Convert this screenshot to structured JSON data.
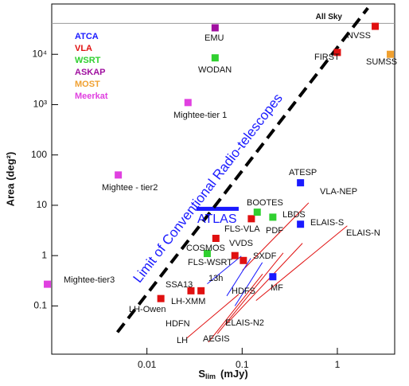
{
  "chart_data": {
    "type": "scatter",
    "xlabel": {
      "symbol": "S",
      "subscript": "lim",
      "unit": "(mJy)"
    },
    "ylabel": "Area (deg²)",
    "log_x": true,
    "log_y": true,
    "xlim": [
      0.001,
      4
    ],
    "ylim": [
      0.011,
      100000
    ],
    "xticks": [
      0.01,
      0.1,
      1
    ],
    "yticks": [
      0.1,
      1,
      10,
      100,
      {
        "value": 1000,
        "label": "10³"
      },
      {
        "value": 10000,
        "label": "10⁴"
      }
    ],
    "legend": "top-left",
    "series": [
      {
        "name": "ATCA",
        "color": "#1a1aff",
        "x": [
          0.41,
          0.41,
          0.21
        ],
        "y": [
          28,
          4.2,
          0.38
        ]
      },
      {
        "name": "VLA",
        "color": "#e01010",
        "x": [
          2.5,
          1.0,
          0.125,
          0.053,
          0.084,
          0.103,
          0.029,
          0.037,
          0.014
        ],
        "y": [
          36000,
          10900,
          5.4,
          2.2,
          1.0,
          0.8,
          0.2,
          0.2,
          0.14
        ]
      },
      {
        "name": "WSRT",
        "color": "#30d030",
        "x": [
          0.052,
          0.144,
          0.21,
          0.043
        ],
        "y": [
          8500,
          7.3,
          5.8,
          1.1
        ]
      },
      {
        "name": "ASKAP",
        "color": "#a010a0",
        "x": [
          0.052
        ],
        "y": [
          33600
        ]
      },
      {
        "name": "MOST",
        "color": "#f0a030",
        "x": [
          3.6
        ],
        "y": [
          10000
        ]
      },
      {
        "name": "Meerkat",
        "color": "#e040e0",
        "x": [
          0.027,
          0.005,
          0.0009
        ],
        "y": [
          1100,
          40,
          0.27
        ]
      }
    ],
    "tracks": [
      {
        "color": "#1a1aff",
        "line_width": 5,
        "x": [
          0.033,
          0.092
        ],
        "y": [
          8.5,
          8.5
        ]
      },
      {
        "color": "#e01010",
        "line_width": 1,
        "x": [
          0.0443,
          0.164
        ],
        "y": [
          0.019,
          0.43
        ]
      },
      {
        "color": "#e01010",
        "line_width": 1,
        "x": [
          0.055,
          0.27
        ],
        "y": [
          0.028,
          1.13
        ]
      },
      {
        "color": "#e01010",
        "line_width": 1,
        "x": [
          0.068,
          0.43
        ],
        "y": [
          0.043,
          1.76
        ]
      },
      {
        "color": "#e01010",
        "line_width": 1,
        "x": [
          0.0263,
          0.092
        ],
        "y": [
          0.023,
          0.17
        ]
      },
      {
        "color": "#e01010",
        "line_width": 1,
        "x": [
          0.14,
          1.27
        ],
        "y": [
          0.128,
          3.9
        ]
      },
      {
        "color": "#e01010",
        "line_width": 1,
        "x": [
          0.101,
          0.5
        ],
        "y": [
          0.51,
          11.2
        ]
      },
      {
        "color": "#1a1aff",
        "line_width": 1,
        "x": [
          0.069,
          0.123
        ],
        "y": [
          0.158,
          0.88
        ]
      },
      {
        "color": "#1a1aff",
        "line_width": 1,
        "x": [
          0.084,
          0.163
        ],
        "y": [
          0.1,
          0.73
        ]
      },
      {
        "color": "#1a1aff",
        "line_width": 1,
        "x": [
          0.043,
          0.098
        ],
        "y": [
          0.275,
          0.98
        ]
      }
    ],
    "all_sky": {
      "label": "All Sky",
      "value": 41253
    },
    "limit_line": {
      "label": "Limit of Conventional Radio-telescopes",
      "color": "#1a1aff",
      "x": [
        0.0049,
        2.09
      ],
      "y": [
        0.03,
        83000
      ]
    },
    "atlas_label": "ATLAS",
    "annotations": [
      "NVSS",
      "FIRST",
      "SUMSS",
      "EMU",
      "WODAN",
      "Mightee-tier 1",
      "Mightee - tier2",
      "Mightee-tier3",
      "ATESP",
      "VLA-NEP",
      "BOOTES",
      "FLS-VLA",
      "PDF",
      "LBDS",
      "ELAIS-S",
      "ELAIS-N",
      "COSMOS",
      "VVDS",
      "FLS-WSRT",
      "SXDF",
      "13h",
      "SSA13",
      "MF",
      "HDFS",
      "LH-XMM",
      "LH-Owen",
      "HDFN",
      "ELAIS-N2",
      "AEGIS",
      "LH"
    ]
  }
}
